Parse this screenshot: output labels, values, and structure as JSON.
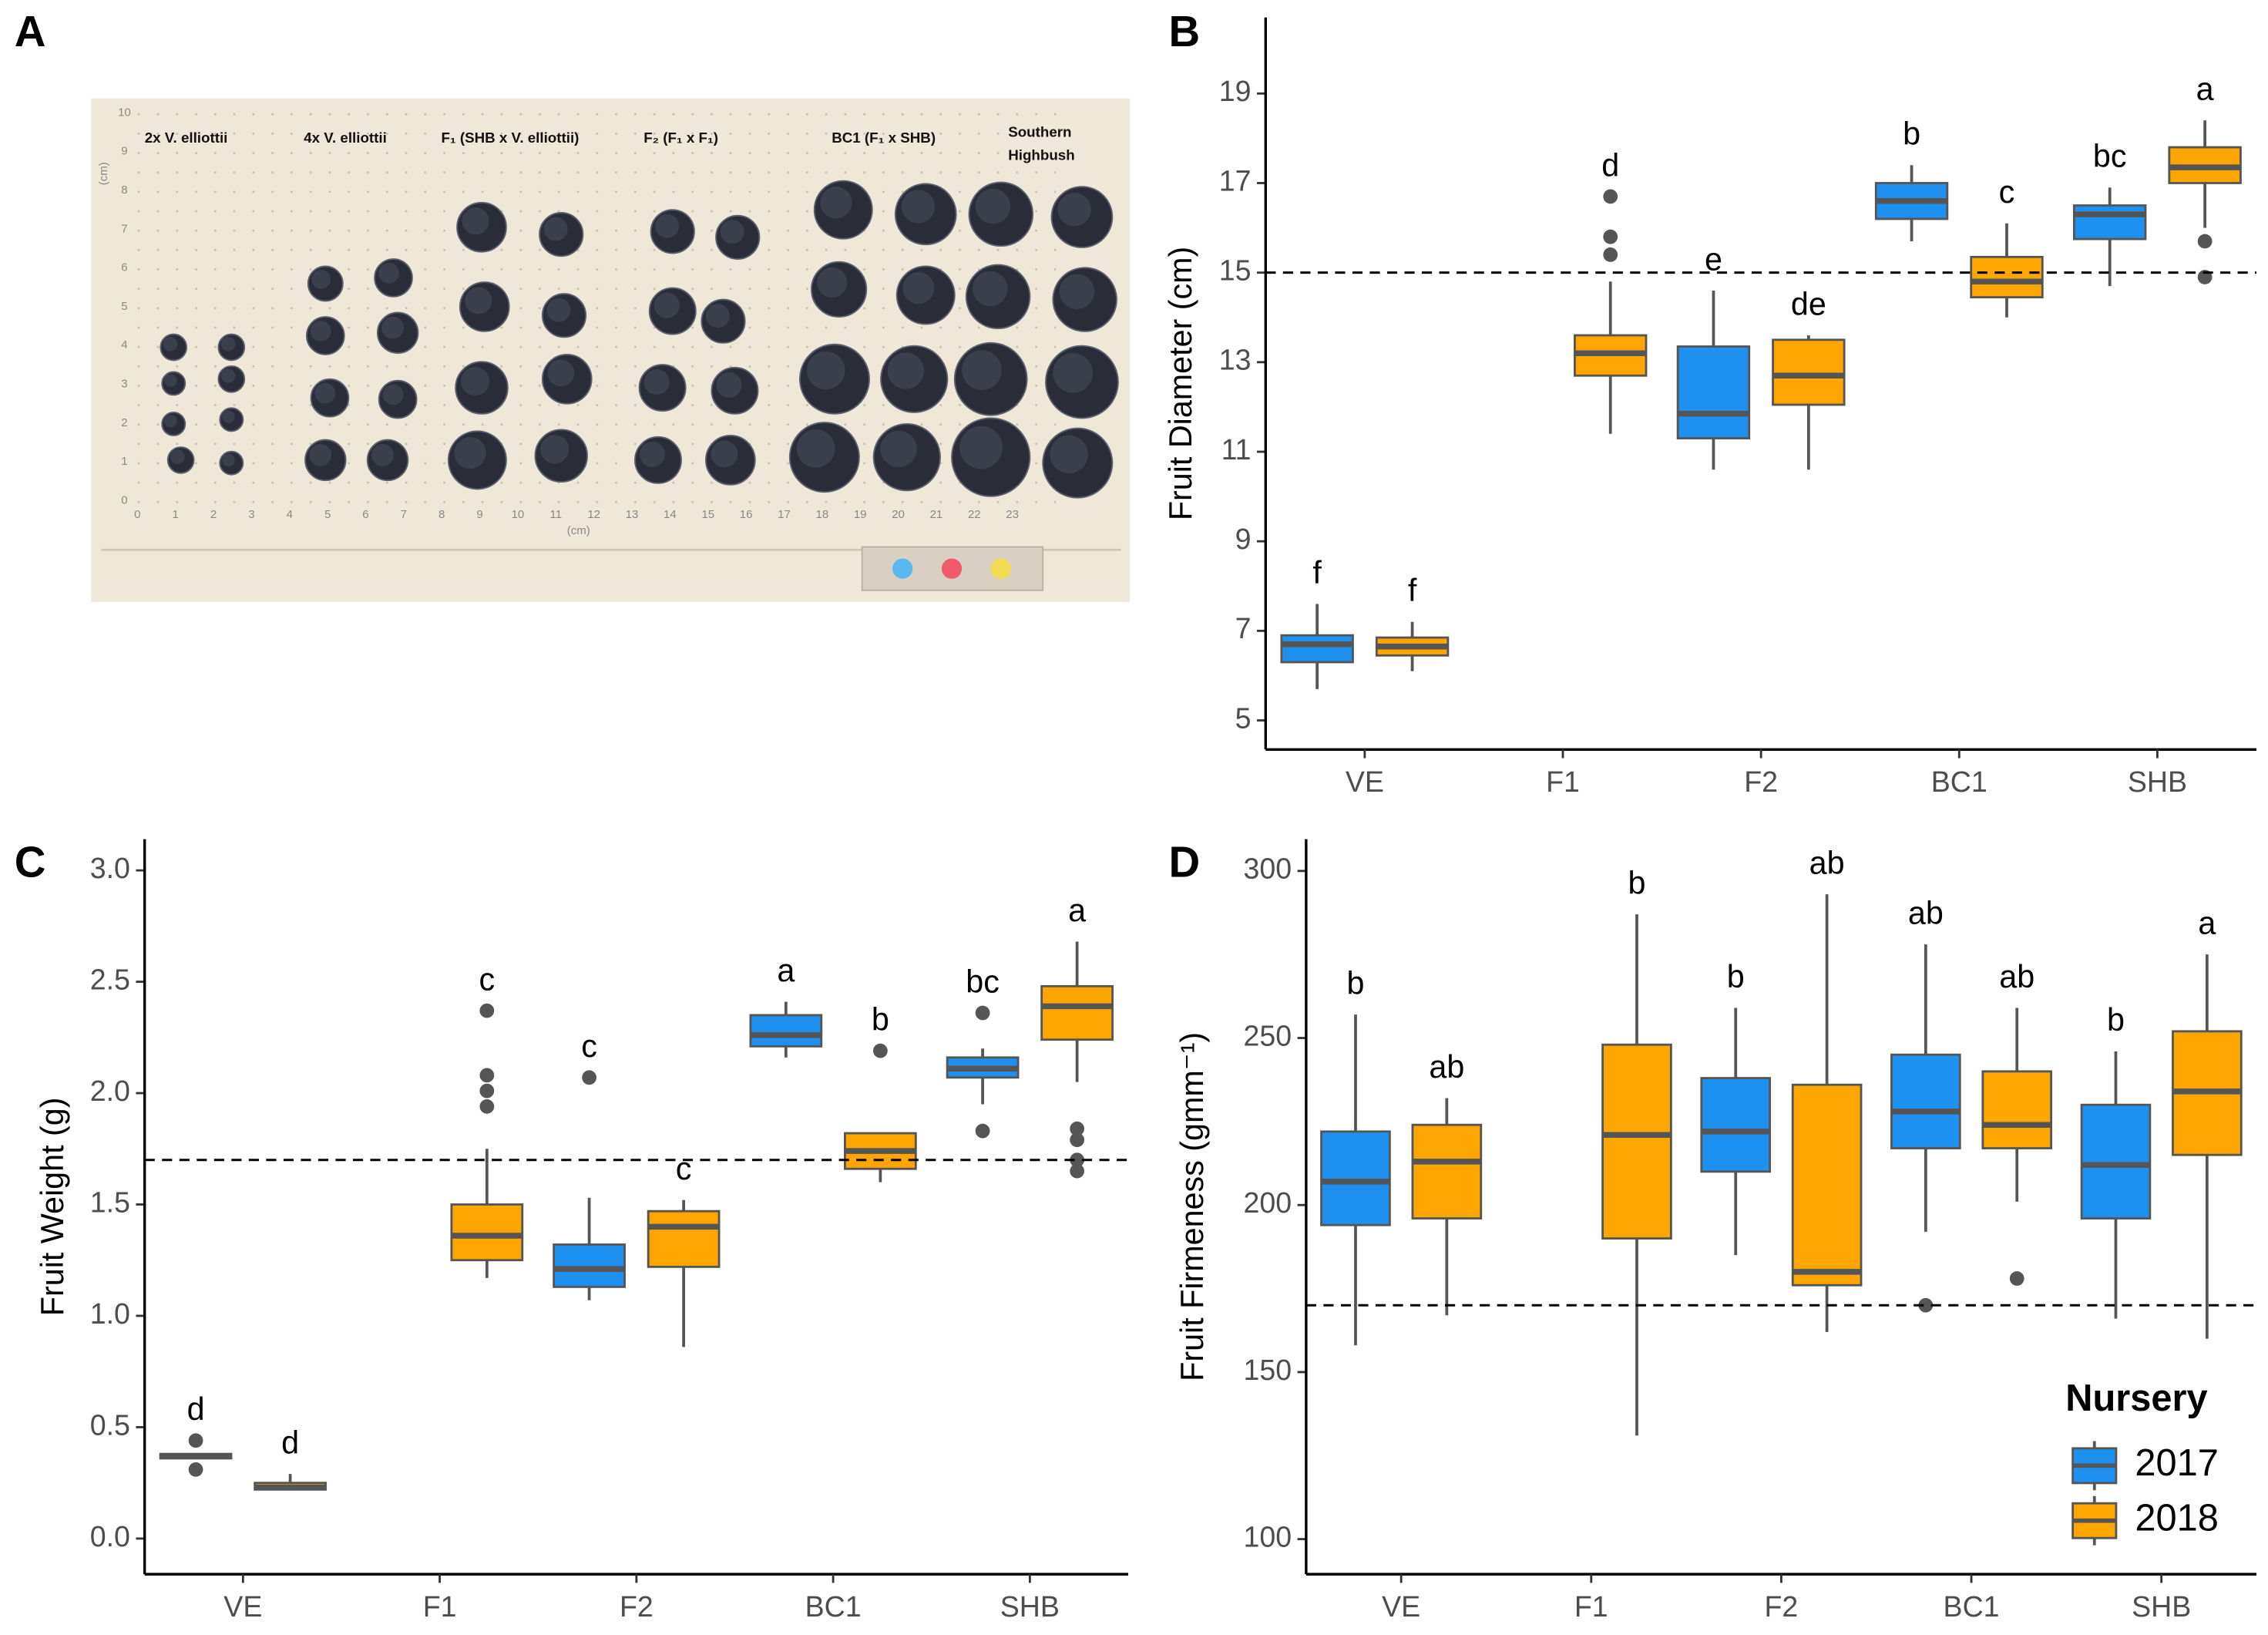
{
  "photo": {
    "panel": "A",
    "labels": [
      "2x V. elliottii",
      "4x V. elliottii",
      "F₁ (SHB x V. elliottii)",
      "F₂ (F₁ x F₁)",
      "BC1 (F₁ x SHB)",
      "Southern",
      "Highbush"
    ],
    "ruler_x": [
      0,
      1,
      2,
      3,
      4,
      5,
      6,
      7,
      8,
      9,
      10,
      11,
      12,
      13,
      14,
      15,
      16,
      17,
      18,
      19,
      20,
      21,
      22,
      23
    ],
    "ruler_y": [
      0,
      1,
      2,
      3,
      4,
      5,
      6,
      7,
      8,
      9,
      10
    ],
    "ruler_unit": "(cm)"
  },
  "chart_data": [
    {
      "type": "box",
      "panel": "B",
      "y_label": "Fruit Diameter (cm)",
      "categories": [
        "VE",
        "F1",
        "F2",
        "BC1",
        "SHB"
      ],
      "ylim": [
        4.35,
        20.7
      ],
      "yticks": [
        5,
        7,
        9,
        11,
        13,
        15,
        17,
        19
      ],
      "hline": 15,
      "series": [
        {
          "color": "#1e90f0",
          "labels": [
            "f",
            null,
            "e",
            "b",
            "bc"
          ],
          "values": [
            {
              "min": 5.7,
              "q1": 6.3,
              "median": 6.7,
              "q3": 6.9,
              "max": 7.6,
              "outliers": []
            },
            null,
            {
              "min": 10.6,
              "q1": 11.3,
              "median": 11.85,
              "q3": 13.35,
              "max": 14.6,
              "outliers": []
            },
            {
              "min": 15.7,
              "q1": 16.2,
              "median": 16.6,
              "q3": 17.0,
              "max": 17.4,
              "outliers": []
            },
            {
              "min": 14.7,
              "q1": 15.75,
              "median": 16.3,
              "q3": 16.5,
              "max": 16.9,
              "outliers": []
            }
          ]
        },
        {
          "color": "#ffa500",
          "labels": [
            "f",
            "d",
            "de",
            "c",
            "a"
          ],
          "values": [
            {
              "min": 6.1,
              "q1": 6.45,
              "median": 6.65,
              "q3": 6.85,
              "max": 7.2,
              "outliers": []
            },
            {
              "min": 11.4,
              "q1": 12.7,
              "median": 13.2,
              "q3": 13.6,
              "max": 14.8,
              "outliers": [
                15.4,
                15.8,
                16.7
              ]
            },
            {
              "min": 10.6,
              "q1": 12.05,
              "median": 12.7,
              "q3": 13.5,
              "max": 13.6,
              "outliers": []
            },
            {
              "min": 14.0,
              "q1": 14.45,
              "median": 14.8,
              "q3": 15.35,
              "max": 16.1,
              "outliers": []
            },
            {
              "min": 16.0,
              "q1": 17.0,
              "median": 17.35,
              "q3": 17.8,
              "max": 18.4,
              "outliers": [
                15.7,
                14.9
              ]
            }
          ]
        }
      ]
    },
    {
      "type": "box",
      "panel": "C",
      "y_label": "Fruit Weight (g)",
      "categories": [
        "VE",
        "F1",
        "F2",
        "BC1",
        "SHB"
      ],
      "ylim": [
        -0.16,
        3.14
      ],
      "yticks": [
        {
          "value": 0,
          "label": "0.0"
        },
        0.5,
        {
          "value": 1,
          "label": "1.0"
        },
        1.5,
        {
          "value": 2,
          "label": "2.0"
        },
        2.5,
        {
          "value": 3,
          "label": "3.0"
        }
      ],
      "hline": 1.7,
      "series": [
        {
          "color": "#1e90f0",
          "labels": [
            "d",
            null,
            "c",
            "a",
            "bc"
          ],
          "values": [
            {
              "min": 0.36,
              "q1": 0.36,
              "median": 0.37,
              "q3": 0.38,
              "max": 0.38,
              "outliers": [
                0.44,
                0.31
              ]
            },
            null,
            {
              "min": 1.07,
              "q1": 1.13,
              "median": 1.21,
              "q3": 1.32,
              "max": 1.53,
              "outliers": [
                2.07
              ]
            },
            {
              "min": 2.16,
              "q1": 2.21,
              "median": 2.26,
              "q3": 2.35,
              "max": 2.41,
              "outliers": []
            },
            {
              "min": 1.95,
              "q1": 2.07,
              "median": 2.11,
              "q3": 2.16,
              "max": 2.2,
              "outliers": [
                2.36,
                1.83
              ]
            }
          ]
        },
        {
          "color": "#ffa500",
          "labels": [
            "d",
            "c",
            "c",
            "b",
            "a"
          ],
          "values": [
            {
              "min": 0.22,
              "q1": 0.22,
              "median": 0.23,
              "q3": 0.25,
              "max": 0.29,
              "outliers": []
            },
            {
              "min": 1.17,
              "q1": 1.25,
              "median": 1.36,
              "q3": 1.5,
              "max": 1.75,
              "outliers": [
                1.94,
                2.01,
                2.08,
                2.37
              ]
            },
            {
              "min": 0.86,
              "q1": 1.22,
              "median": 1.4,
              "q3": 1.47,
              "max": 1.52,
              "outliers": []
            },
            {
              "min": 1.6,
              "q1": 1.66,
              "median": 1.74,
              "q3": 1.82,
              "max": 1.82,
              "outliers": [
                2.19
              ]
            },
            {
              "min": 2.05,
              "q1": 2.24,
              "median": 2.39,
              "q3": 2.48,
              "max": 2.68,
              "outliers": [
                1.84,
                1.79,
                1.7,
                1.65
              ]
            }
          ]
        }
      ]
    },
    {
      "type": "box",
      "panel": "D",
      "y_label": "Fruit Firmeness  (gmm⁻¹)",
      "categories": [
        "VE",
        "F1",
        "F2",
        "BC1",
        "SHB"
      ],
      "ylim": [
        89.5,
        309.5
      ],
      "yticks": [
        100,
        150,
        200,
        250,
        300
      ],
      "hline": 170,
      "legend_title": "Nursery",
      "legend": "bottom-right",
      "series": [
        {
          "name": "2017",
          "color": "#1e90f0",
          "labels": [
            "b",
            null,
            "b",
            "ab",
            "b"
          ],
          "values": [
            {
              "min": 158,
              "q1": 194,
              "median": 207,
              "q3": 222,
              "max": 257,
              "outliers": []
            },
            null,
            {
              "min": 185,
              "q1": 210,
              "median": 222,
              "q3": 238,
              "max": 259,
              "outliers": []
            },
            {
              "min": 192,
              "q1": 217,
              "median": 228,
              "q3": 245,
              "max": 278,
              "outliers": [
                170
              ]
            },
            {
              "min": 166,
              "q1": 196,
              "median": 212,
              "q3": 230,
              "max": 246,
              "outliers": []
            }
          ]
        },
        {
          "name": "2018",
          "color": "#ffa500",
          "labels": [
            "ab",
            "b",
            "ab",
            "ab",
            "a"
          ],
          "values": [
            {
              "min": 167,
              "q1": 196,
              "median": 213,
              "q3": 224,
              "max": 232,
              "outliers": []
            },
            {
              "min": 131,
              "q1": 190,
              "median": 221,
              "q3": 248,
              "max": 287,
              "outliers": []
            },
            {
              "min": 162,
              "q1": 176,
              "median": 180,
              "q3": 236,
              "max": 293,
              "outliers": []
            },
            {
              "min": 201,
              "q1": 217,
              "median": 224,
              "q3": 240,
              "max": 259,
              "outliers": [
                178
              ]
            },
            {
              "min": 160,
              "q1": 215,
              "median": 234,
              "q3": 252,
              "max": 275,
              "outliers": []
            }
          ]
        }
      ]
    }
  ]
}
